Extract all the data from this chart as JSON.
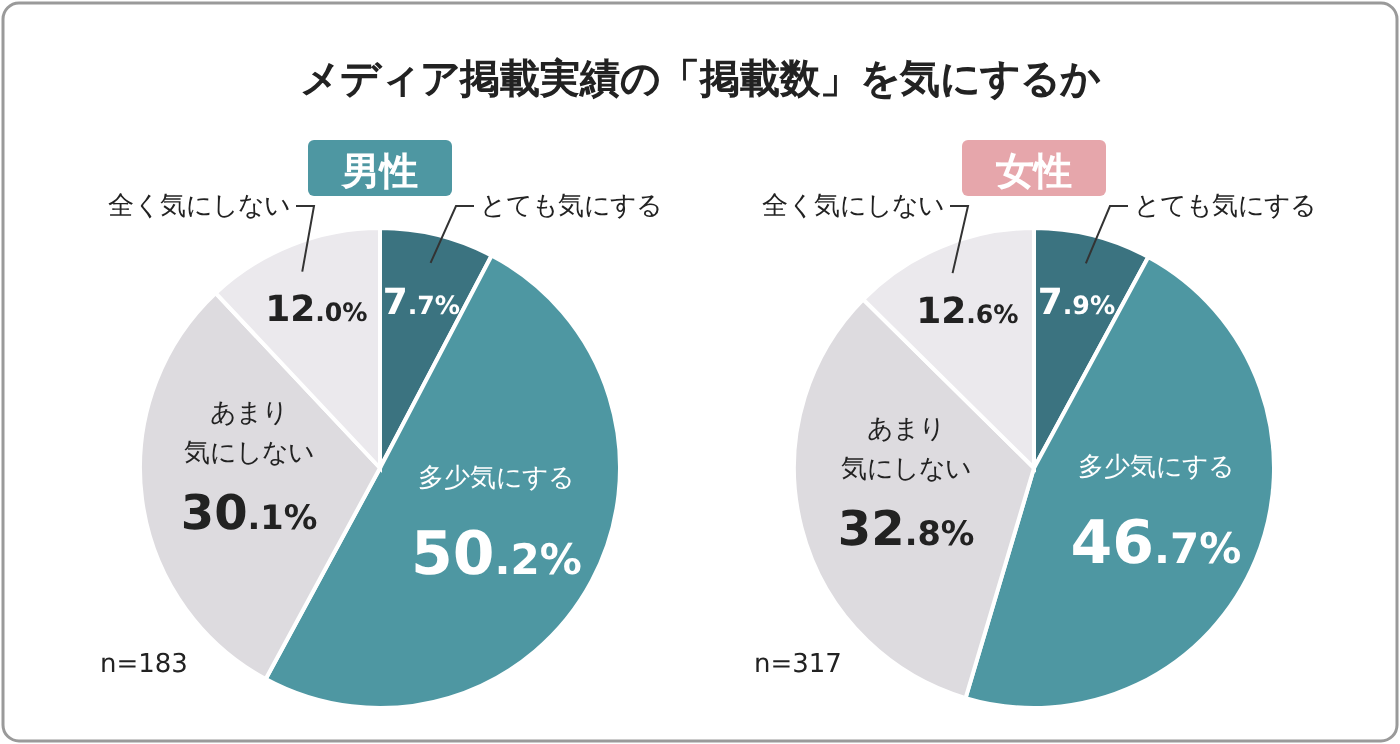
{
  "chart_data": [
    {
      "type": "other",
      "title": "メディア掲載実績の「掲載数」を気にするか"
    },
    {
      "type": "pie",
      "title": "男性",
      "categories": [
        "とても気にする",
        "多少気にする",
        "あまり気にしない",
        "全く気にしない"
      ],
      "values": [
        7.7,
        50.2,
        30.1,
        12.0
      ],
      "value_labels": [
        "7.7%",
        "50.2%",
        "30.1%",
        "12.0%"
      ],
      "colors": [
        "#3b7380",
        "#4e97a2",
        "#dddbdf",
        "#ebe9ed"
      ],
      "annotations": [
        "n=183"
      ]
    },
    {
      "type": "pie",
      "title": "女性",
      "categories": [
        "とても気にする",
        "多少気にする",
        "あまり気にしない",
        "全く気にしない"
      ],
      "values": [
        7.9,
        46.7,
        32.8,
        12.6
      ],
      "value_labels": [
        "7.9%",
        "46.7%",
        "32.8%",
        "12.6%"
      ],
      "colors": [
        "#3b7380",
        "#4e97a2",
        "#dddbdf",
        "#ebe9ed"
      ],
      "annotations": [
        "n=317"
      ]
    }
  ]
}
